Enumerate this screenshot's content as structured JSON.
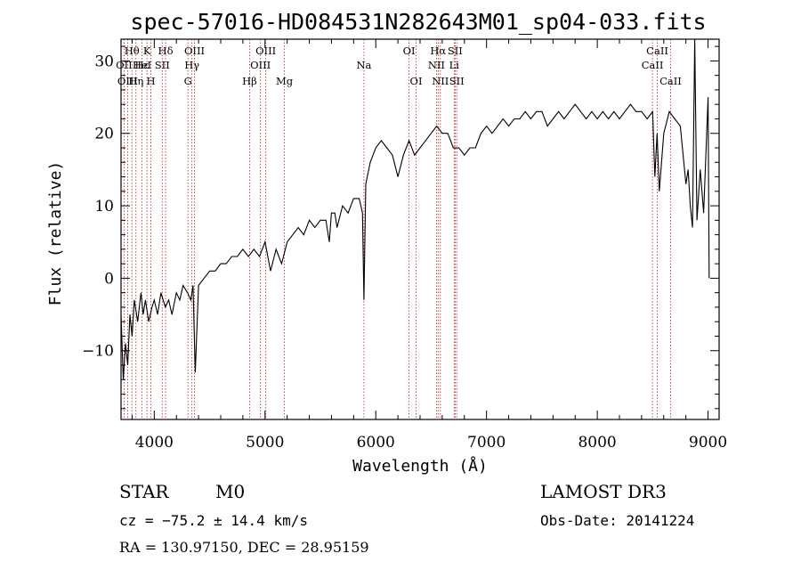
{
  "chart_data": {
    "type": "line",
    "title": "spec-57016-HD084531N282643M01_sp04-033.fits",
    "xlabel": "Wavelength (Å)",
    "ylabel": "Flux (relative)",
    "xlim": [
      3700,
      9100
    ],
    "ylim": [
      -19.5,
      33
    ],
    "xticks": [
      4000,
      5000,
      6000,
      7000,
      8000,
      9000
    ],
    "xtick_labels": [
      "4000",
      "5000",
      "6000",
      "7000",
      "8000",
      "9000"
    ],
    "yticks": [
      -10,
      0,
      10,
      20,
      30
    ],
    "ytick_labels": [
      "−10",
      "0",
      "10",
      "20",
      "30"
    ],
    "series": [
      {
        "name": "spectrum",
        "x": [
          3700,
          3720,
          3740,
          3760,
          3780,
          3800,
          3820,
          3850,
          3880,
          3900,
          3920,
          3950,
          3980,
          4000,
          4030,
          4060,
          4100,
          4130,
          4160,
          4200,
          4230,
          4260,
          4300,
          4330,
          4350,
          4370,
          4400,
          4450,
          4500,
          4550,
          4600,
          4650,
          4700,
          4750,
          4800,
          4850,
          4900,
          4950,
          5000,
          5050,
          5100,
          5150,
          5200,
          5250,
          5300,
          5350,
          5400,
          5450,
          5500,
          5550,
          5580,
          5600,
          5630,
          5650,
          5700,
          5750,
          5800,
          5850,
          5880,
          5893,
          5910,
          5950,
          6000,
          6050,
          6100,
          6150,
          6200,
          6250,
          6300,
          6350,
          6400,
          6450,
          6500,
          6550,
          6600,
          6650,
          6700,
          6750,
          6800,
          6850,
          6900,
          6950,
          7000,
          7050,
          7100,
          7150,
          7200,
          7250,
          7300,
          7350,
          7400,
          7450,
          7500,
          7550,
          7600,
          7650,
          7700,
          7750,
          7800,
          7850,
          7900,
          7950,
          8000,
          8050,
          8100,
          8150,
          8200,
          8250,
          8300,
          8350,
          8400,
          8450,
          8500,
          8520,
          8540,
          8560,
          8600,
          8650,
          8700,
          8750,
          8800,
          8820,
          8840,
          8860,
          8880,
          8900,
          8930,
          8960,
          9000,
          9010
        ],
        "y": [
          -5,
          -14,
          -9,
          -12,
          -5,
          -8,
          -3,
          -6,
          -2,
          -5,
          -3,
          -6,
          -4,
          -3,
          -5,
          -2,
          -4,
          -3,
          -5,
          -2,
          -3,
          -1,
          -2,
          -3,
          -1,
          -13,
          -1,
          0,
          1,
          1,
          2,
          2,
          3,
          3,
          4,
          3,
          4,
          3,
          5,
          1,
          4,
          2,
          5,
          6,
          7,
          6,
          8,
          7,
          8,
          8,
          5,
          9,
          9,
          7,
          10,
          9,
          11,
          11,
          9,
          -3,
          13,
          16,
          18,
          19,
          18,
          17,
          14,
          17,
          19,
          17,
          18,
          19,
          20,
          21,
          20,
          20,
          18,
          18,
          17,
          18,
          18,
          20,
          21,
          20,
          21,
          22,
          21,
          22,
          22,
          23,
          22,
          23,
          23,
          21,
          22,
          23,
          22,
          23,
          24,
          23,
          22,
          23,
          22,
          23,
          22,
          23,
          22,
          23,
          24,
          23,
          23,
          22,
          23,
          14,
          20,
          12,
          20,
          23,
          22,
          21,
          13,
          15,
          10,
          7,
          33,
          8,
          15,
          9,
          25,
          0
        ]
      }
    ],
    "line_markers": [
      {
        "label": "Hθ",
        "wl": 3798,
        "row": 1
      },
      {
        "label": "OII",
        "wl": 3727,
        "row": 2
      },
      {
        "label": "Hε",
        "wl": 3889,
        "row": 2
      },
      {
        "label": "OIII",
        "wl": 3760,
        "row": 3
      },
      {
        "label": "K",
        "wl": 3934,
        "row": 1
      },
      {
        "label": "HeI",
        "wl": 3889,
        "row": 2
      },
      {
        "label": "Hη",
        "wl": 3835,
        "row": 3
      },
      {
        "label": "H",
        "wl": 3969,
        "row": 3
      },
      {
        "label": "Hδ",
        "wl": 4102,
        "row": 1
      },
      {
        "label": "SII",
        "wl": 4072,
        "row": 2
      },
      {
        "label": "OIII",
        "wl": 4363,
        "row": 1
      },
      {
        "label": "Hγ",
        "wl": 4340,
        "row": 2
      },
      {
        "label": "G",
        "wl": 4304,
        "row": 3
      },
      {
        "label": "Hβ",
        "wl": 4861,
        "row": 3
      },
      {
        "label": "OIII",
        "wl": 5007,
        "row": 1
      },
      {
        "label": "OIII",
        "wl": 4959,
        "row": 2
      },
      {
        "label": "Mg",
        "wl": 5175,
        "row": 3
      },
      {
        "label": "Na",
        "wl": 5893,
        "row": 2
      },
      {
        "label": "OI",
        "wl": 6300,
        "row": 1
      },
      {
        "label": "OI",
        "wl": 6364,
        "row": 3
      },
      {
        "label": "Hα",
        "wl": 6563,
        "row": 1
      },
      {
        "label": "SII",
        "wl": 6716,
        "row": 1
      },
      {
        "label": "NII",
        "wl": 6548,
        "row": 2
      },
      {
        "label": "Li",
        "wl": 6708,
        "row": 2
      },
      {
        "label": "NII",
        "wl": 6583,
        "row": 3
      },
      {
        "label": "SII",
        "wl": 6731,
        "row": 3
      },
      {
        "label": "CaII",
        "wl": 8542,
        "row": 1
      },
      {
        "label": "CaII",
        "wl": 8498,
        "row": 2
      },
      {
        "label": "CaII",
        "wl": 8662,
        "row": 3
      }
    ],
    "marker_lines_wl": [
      3727,
      3760,
      3798,
      3835,
      3889,
      3934,
      3969,
      4072,
      4102,
      4304,
      4340,
      4363,
      4861,
      4959,
      5007,
      5175,
      5893,
      6300,
      6364,
      6548,
      6563,
      6583,
      6708,
      6716,
      6731,
      8498,
      8542,
      8662
    ],
    "colors": {
      "spectrum": "#000000",
      "marker": "#b22222"
    }
  },
  "info": {
    "class": "STAR",
    "subclass": "M0",
    "cz_label": "cz = ",
    "cz_value": "−75.2",
    "cz_err_sep": "±",
    "cz_err": "14.4",
    "cz_unit": "km/s",
    "radec": "RA = 130.97150, DEC =  28.95159",
    "survey": "LAMOST DR3",
    "obs_date": "Obs-Date: 20141224"
  }
}
